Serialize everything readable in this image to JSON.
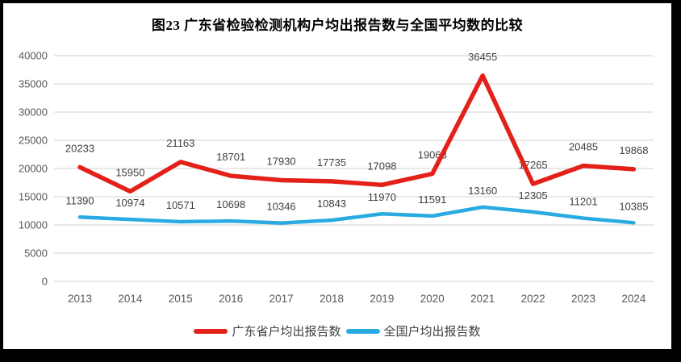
{
  "title": "图23  广东省检验检测机构户均出报告数与全国平均数的比较",
  "chart_data": {
    "type": "line",
    "categories": [
      "2013",
      "2014",
      "2015",
      "2016",
      "2017",
      "2018",
      "2019",
      "2020",
      "2021",
      "2022",
      "2023",
      "2024"
    ],
    "series": [
      {
        "name": "广东省户均出报告数",
        "color": "#e32119",
        "values": [
          20233,
          15950,
          21163,
          18701,
          17930,
          17735,
          17098,
          19063,
          36455,
          17265,
          20485,
          19868
        ]
      },
      {
        "name": "全国户均出报告数",
        "color": "#29abe2",
        "values": [
          11390,
          10974,
          10571,
          10698,
          10346,
          10843,
          11970,
          11591,
          13160,
          12305,
          11201,
          10385
        ]
      }
    ],
    "ylim": [
      0,
      40000
    ],
    "ytick_step": 5000,
    "ytick_labels": [
      "0",
      "5000",
      "10000",
      "15000",
      "20000",
      "25000",
      "30000",
      "35000",
      "40000"
    ],
    "grid": "horizontal",
    "gridline_color": "#d9d9d9",
    "axis_label_color": "#595959",
    "data_label_color": "#3f3f3f",
    "legend_position": "bottom",
    "data_labels_shown": true
  }
}
